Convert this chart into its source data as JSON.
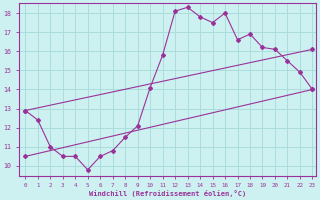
{
  "xlabel": "Windchill (Refroidissement éolien,°C)",
  "bg_color": "#cdf0f0",
  "grid_color": "#aadddd",
  "line_color": "#993399",
  "xlim": [
    -0.5,
    23.3
  ],
  "ylim": [
    9.5,
    18.5
  ],
  "yticks": [
    10,
    11,
    12,
    13,
    14,
    15,
    16,
    17,
    18
  ],
  "xticks": [
    0,
    1,
    2,
    3,
    4,
    5,
    6,
    7,
    8,
    9,
    10,
    11,
    12,
    13,
    14,
    15,
    16,
    17,
    18,
    19,
    20,
    21,
    22,
    23
  ],
  "series1_x": [
    0,
    1,
    2,
    3,
    4,
    5,
    6,
    7,
    8,
    9,
    10,
    11,
    12,
    13,
    14,
    15,
    16,
    17,
    18,
    19,
    20,
    21,
    22,
    23
  ],
  "series1_y": [
    12.9,
    12.4,
    11.0,
    10.5,
    10.5,
    9.8,
    10.5,
    10.8,
    11.5,
    12.1,
    14.1,
    15.8,
    18.1,
    18.3,
    17.8,
    17.5,
    18.0,
    16.6,
    16.9,
    16.2,
    16.1,
    15.5,
    14.9,
    14.0
  ],
  "series2_x": [
    0,
    23
  ],
  "series2_y": [
    12.9,
    16.1
  ],
  "series3_x": [
    0,
    23
  ],
  "series3_y": [
    10.5,
    14.0
  ]
}
